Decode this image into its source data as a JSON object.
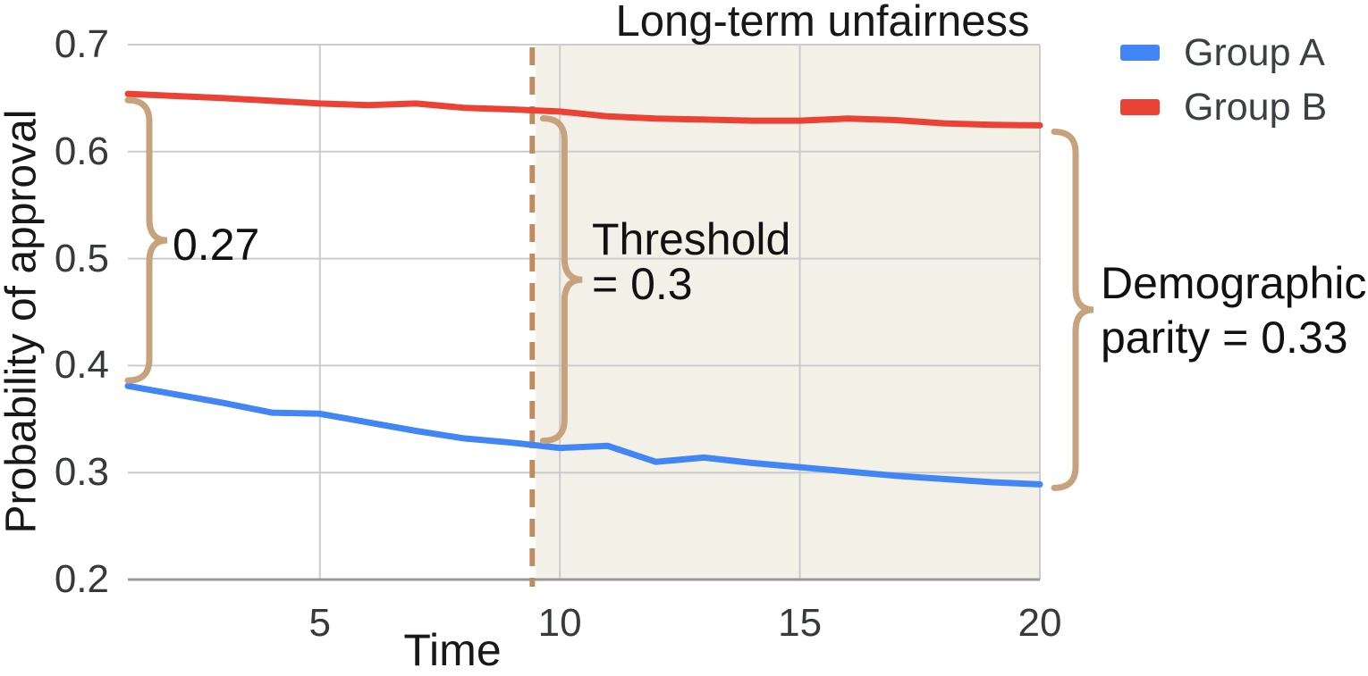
{
  "title": "Long-term unfairness",
  "legend": {
    "items": [
      {
        "label": "Group A",
        "color": "#4285F4"
      },
      {
        "label": "Group B",
        "color": "#EA4335"
      }
    ]
  },
  "annotations": {
    "initial_gap": "0.27",
    "threshold_line1": "Threshold",
    "threshold_line2": "= 0.3",
    "parity_line1": "Demographic",
    "parity_line2": "parity = 0.33"
  },
  "chart_data": {
    "type": "line",
    "title": "Long-term unfairness",
    "xlabel": "Time",
    "ylabel": "Probability of approval",
    "x": [
      1,
      2,
      3,
      4,
      5,
      6,
      7,
      8,
      9,
      10,
      11,
      12,
      13,
      14,
      15,
      16,
      17,
      18,
      19,
      20
    ],
    "series": [
      {
        "name": "Group A",
        "color": "#4285F4",
        "values": [
          0.381,
          0.373,
          0.365,
          0.356,
          0.355,
          0.347,
          0.339,
          0.332,
          0.328,
          0.323,
          0.325,
          0.31,
          0.314,
          0.309,
          0.305,
          0.301,
          0.297,
          0.294,
          0.291,
          0.289
        ]
      },
      {
        "name": "Group B",
        "color": "#EA4335",
        "values": [
          0.654,
          0.652,
          0.65,
          0.6475,
          0.645,
          0.6435,
          0.645,
          0.641,
          0.6395,
          0.6375,
          0.633,
          0.631,
          0.63,
          0.629,
          0.629,
          0.631,
          0.6295,
          0.6265,
          0.625,
          0.6245
        ]
      }
    ],
    "xlim": [
      1,
      20
    ],
    "ylim": [
      0.2,
      0.7
    ],
    "x_ticks": [
      5,
      10,
      15,
      20
    ],
    "y_ticks": [
      0.2,
      0.3,
      0.4,
      0.5,
      0.6,
      0.7
    ],
    "grid": true,
    "legend_position": "top-right",
    "threshold_x": 9.5,
    "shaded_region": {
      "x_start": 9.5,
      "x_end": 20,
      "label": "Long-term unfairness",
      "fill": "#F3F0E8"
    },
    "annotations": [
      {
        "text": "0.27",
        "at_x": 1
      },
      {
        "text": "Threshold = 0.3",
        "at_x": 9.5
      },
      {
        "text": "Demographic parity = 0.33",
        "at_x": 20
      }
    ],
    "styles": {
      "dashed_line_color": "#BE8C5E",
      "brace_color": "#C6A37C",
      "grid_color": "#CCCCCC",
      "axis_color": "#999999"
    }
  }
}
